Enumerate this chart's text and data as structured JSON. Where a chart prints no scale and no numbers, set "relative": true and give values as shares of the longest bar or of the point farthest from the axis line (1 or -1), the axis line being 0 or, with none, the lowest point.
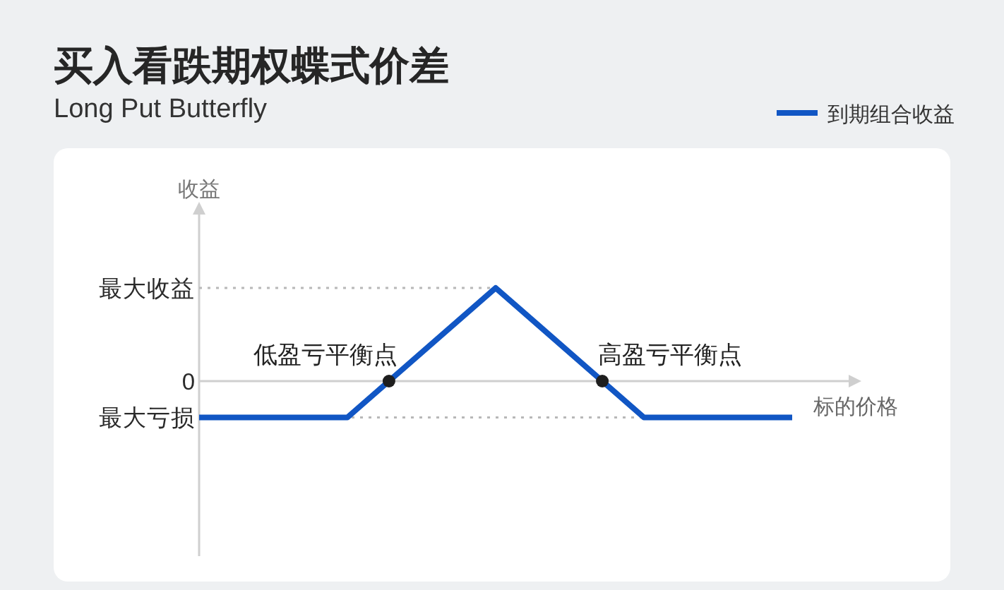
{
  "chart_data": {
    "type": "line",
    "title": "买入看跌期权蝶式价差",
    "subtitle": "Long Put Butterfly",
    "xlabel": "标的价格",
    "ylabel": "收益",
    "categories": [
      null,
      null,
      null,
      null,
      null
    ],
    "series": [
      {
        "name": "到期组合收益",
        "color": "#1156c4",
        "values": [
          -0.39,
          -0.39,
          1,
          -0.39,
          -0.39
        ]
      }
    ],
    "relative": true,
    "ref_lines": [
      {
        "axis": "y",
        "value": 1,
        "label": "最大收益",
        "color": "#b8b8b8",
        "line_style": "dotted"
      },
      {
        "axis": "y",
        "value": 0,
        "label": "0"
      },
      {
        "axis": "y",
        "value": -0.39,
        "label": "最大亏损",
        "color": "#b8b8b8",
        "line_style": "dotted"
      }
    ],
    "annotations": [
      {
        "text": "低盈亏平衡点",
        "y": 0
      },
      {
        "text": "高盈亏平衡点",
        "y": 0
      }
    ],
    "legend": "top right"
  }
}
